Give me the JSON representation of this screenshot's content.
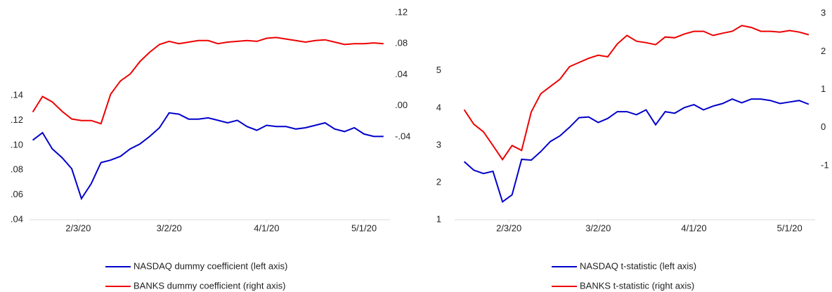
{
  "chart_data": [
    {
      "type": "line",
      "x": [
        "2020-01-20",
        "2020-01-23",
        "2020-01-26",
        "2020-01-29",
        "2020-02-01",
        "2020-02-04",
        "2020-02-07",
        "2020-02-10",
        "2020-02-13",
        "2020-02-16",
        "2020-02-19",
        "2020-02-22",
        "2020-02-25",
        "2020-02-28",
        "2020-03-02",
        "2020-03-05",
        "2020-03-08",
        "2020-03-11",
        "2020-03-14",
        "2020-03-17",
        "2020-03-20",
        "2020-03-23",
        "2020-03-26",
        "2020-03-29",
        "2020-04-01",
        "2020-04-04",
        "2020-04-07",
        "2020-04-10",
        "2020-04-13",
        "2020-04-16",
        "2020-04-19",
        "2020-04-22",
        "2020-04-25",
        "2020-04-28",
        "2020-05-01",
        "2020-05-04",
        "2020-05-07"
      ],
      "xlim": [
        "2020-01-19",
        "2020-05-09"
      ],
      "xticks": [
        {
          "value": "2020-02-03",
          "label": "2/3/20"
        },
        {
          "value": "2020-03-02",
          "label": "3/2/20"
        },
        {
          "value": "2020-04-01",
          "label": "4/1/20"
        },
        {
          "value": "2020-05-01",
          "label": "5/1/20"
        }
      ],
      "ylim": [
        0.04,
        0.2067
      ],
      "yticks": [
        {
          "value": 0.04,
          "label": ".04"
        },
        {
          "value": 0.06,
          "label": ".06"
        },
        {
          "value": 0.08,
          "label": ".08"
        },
        {
          "value": 0.1,
          "label": ".10"
        },
        {
          "value": 0.12,
          "label": ".12"
        },
        {
          "value": 0.14,
          "label": ".14"
        }
      ],
      "y2lim": [
        -0.1467,
        0.12
      ],
      "y2ticks": [
        {
          "value": -0.04,
          "label": "-.04"
        },
        {
          "value": 0,
          "label": ".00"
        },
        {
          "value": 0.04,
          "label": ".04"
        },
        {
          "value": 0.08,
          "label": ".08"
        },
        {
          "value": 0.12,
          "label": ".12"
        }
      ],
      "series": [
        {
          "name": "NASDAQ dummy coefficient (left axis)",
          "color": "#0000cc",
          "axis": "y",
          "values": [
            0.104,
            0.11,
            0.097,
            0.09,
            0.081,
            0.057,
            0.069,
            0.086,
            0.088,
            0.091,
            0.097,
            0.101,
            0.107,
            0.114,
            0.126,
            0.125,
            0.121,
            0.121,
            0.122,
            0.12,
            0.118,
            0.12,
            0.115,
            0.112,
            0.116,
            0.115,
            0.115,
            0.113,
            0.114,
            0.116,
            0.118,
            0.113,
            0.111,
            0.114,
            0.109,
            0.107,
            0.107
          ]
        },
        {
          "name": "BANKS dummy coefficient (right axis)",
          "color": "#ee0000",
          "axis": "y2",
          "values": [
            -0.008,
            0.012,
            0.005,
            -0.007,
            -0.017,
            -0.019,
            -0.019,
            -0.023,
            0.015,
            0.032,
            0.041,
            0.057,
            0.069,
            0.079,
            0.083,
            0.08,
            0.082,
            0.084,
            0.084,
            0.08,
            0.082,
            0.083,
            0.084,
            0.083,
            0.087,
            0.088,
            0.086,
            0.084,
            0.082,
            0.084,
            0.085,
            0.082,
            0.079,
            0.08,
            0.08,
            0.081,
            0.08
          ]
        }
      ]
    },
    {
      "type": "line",
      "x": [
        "2020-01-20",
        "2020-01-23",
        "2020-01-26",
        "2020-01-29",
        "2020-02-01",
        "2020-02-04",
        "2020-02-07",
        "2020-02-10",
        "2020-02-13",
        "2020-02-16",
        "2020-02-19",
        "2020-02-22",
        "2020-02-25",
        "2020-02-28",
        "2020-03-02",
        "2020-03-05",
        "2020-03-08",
        "2020-03-11",
        "2020-03-14",
        "2020-03-17",
        "2020-03-20",
        "2020-03-23",
        "2020-03-26",
        "2020-03-29",
        "2020-04-01",
        "2020-04-04",
        "2020-04-07",
        "2020-04-10",
        "2020-04-13",
        "2020-04-16",
        "2020-04-19",
        "2020-04-22",
        "2020-04-25",
        "2020-04-28",
        "2020-05-01",
        "2020-05-04",
        "2020-05-07"
      ],
      "xlim": [
        "2020-01-17",
        "2020-05-09"
      ],
      "xticks": [
        {
          "value": "2020-02-03",
          "label": "2/3/20"
        },
        {
          "value": "2020-03-02",
          "label": "3/2/20"
        },
        {
          "value": "2020-04-01",
          "label": "4/1/20"
        },
        {
          "value": "2020-05-01",
          "label": "5/1/20"
        }
      ],
      "ylim": [
        1,
        6.56
      ],
      "yticks": [
        1,
        2,
        3,
        4,
        5
      ],
      "y2lim": [
        -2.42,
        3.02
      ],
      "y2ticks": [
        -1,
        0,
        1,
        2,
        3
      ],
      "series": [
        {
          "name": "NASDAQ t-statistic (left axis)",
          "color": "#0000cc",
          "axis": "y",
          "values": [
            2.56,
            2.33,
            2.24,
            2.3,
            1.48,
            1.67,
            2.62,
            2.6,
            2.83,
            3.1,
            3.25,
            3.48,
            3.74,
            3.76,
            3.61,
            3.72,
            3.9,
            3.9,
            3.82,
            3.95,
            3.55,
            3.9,
            3.86,
            4.01,
            4.09,
            3.95,
            4.05,
            4.12,
            4.24,
            4.14,
            4.24,
            4.24,
            4.2,
            4.12,
            4.16,
            4.2,
            4.1
          ]
        },
        {
          "name": "BANKS t-statistic (right axis)",
          "color": "#ee0000",
          "axis": "y2",
          "values": [
            0.47,
            0.09,
            -0.11,
            -0.47,
            -0.84,
            -0.47,
            -0.6,
            0.41,
            0.89,
            1.08,
            1.27,
            1.6,
            1.71,
            1.82,
            1.9,
            1.86,
            2.2,
            2.42,
            2.27,
            2.23,
            2.18,
            2.38,
            2.36,
            2.46,
            2.53,
            2.53,
            2.42,
            2.48,
            2.53,
            2.68,
            2.63,
            2.53,
            2.53,
            2.51,
            2.55,
            2.51,
            2.44
          ]
        }
      ]
    }
  ]
}
